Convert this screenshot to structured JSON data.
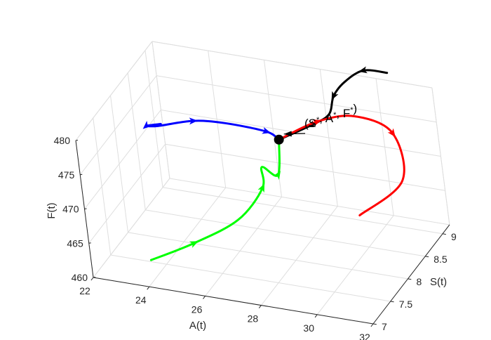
{
  "chart_data": {
    "type": "line",
    "projection": "3d",
    "xlabel": "A(t)",
    "ylabel": "S(t)",
    "zlabel": "F(t)",
    "xticks": [
      "22",
      "24",
      "26",
      "28",
      "30",
      "32"
    ],
    "yticks": [
      "7",
      "7.5",
      "8",
      "8.5",
      "9"
    ],
    "zticks": [
      "460",
      "465",
      "470",
      "475",
      "480"
    ],
    "xlim": [
      22,
      32
    ],
    "ylim": [
      7,
      9.2
    ],
    "zlim": [
      460,
      480
    ],
    "grid": true,
    "annotation": {
      "text": "(S*, A*, F*)",
      "parts": [
        "(S",
        "*",
        ", A",
        "*",
        ", F",
        "*",
        ")"
      ],
      "equilibrium": {
        "A": 27.5,
        "S": 8.3,
        "F": 475.3
      }
    },
    "series": [
      {
        "color": "#000000",
        "points": [
          [
            30.5,
            9.15,
            481.5
          ],
          [
            29.5,
            9.25,
            480.5
          ],
          [
            28.7,
            9.3,
            478
          ],
          [
            28.3,
            9.25,
            476
          ],
          [
            28.7,
            8.8,
            476.5
          ],
          [
            28.6,
            8.4,
            477.5
          ],
          [
            27.5,
            8.3,
            475.3
          ]
        ]
      },
      {
        "color": "#0000ff",
        "points": [
          [
            24,
            7.8,
            478.5
          ],
          [
            23.1,
            8.05,
            476
          ],
          [
            23.1,
            8.35,
            474
          ],
          [
            24,
            8.6,
            473.7
          ],
          [
            25,
            8.7,
            473.4
          ],
          [
            26.7,
            8.55,
            474.3
          ],
          [
            27.5,
            8.3,
            475.3
          ]
        ]
      },
      {
        "color": "#ff0000",
        "points": [
          [
            27.5,
            8.3,
            475.3
          ],
          [
            28.3,
            8.75,
            475.5
          ],
          [
            29.2,
            9.1,
            474.6
          ],
          [
            30.2,
            9.3,
            471.5
          ],
          [
            30.7,
            9.05,
            466.5
          ],
          [
            29.8,
            8.5,
            464.5
          ]
        ]
      },
      {
        "color": "#00ff00",
        "points": [
          [
            23.6,
            7.4,
            461
          ],
          [
            24.8,
            7.7,
            462.3
          ],
          [
            26,
            8.05,
            464.2
          ],
          [
            26.6,
            8.35,
            467.3
          ],
          [
            26.3,
            8.6,
            468.5
          ],
          [
            27.3,
            8.3,
            470
          ],
          [
            27.5,
            8.3,
            475.3
          ]
        ]
      }
    ]
  }
}
